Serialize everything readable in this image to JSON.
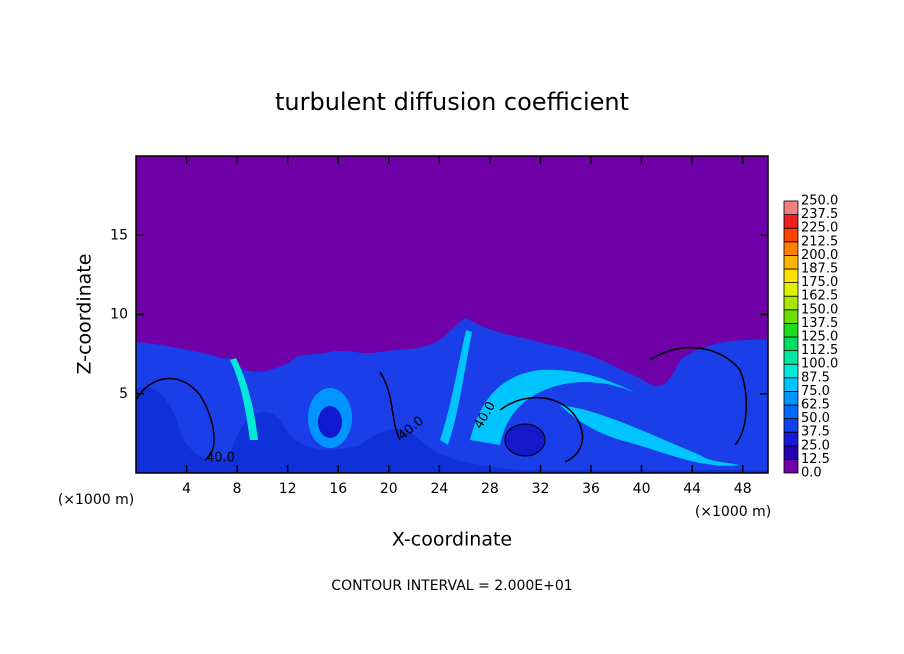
{
  "chart_data": {
    "type": "contour",
    "title": "turbulent diffusion coefficient",
    "x_label": "X-coordinate",
    "y_label": "Z-coordinate",
    "x_unit": "(×1000 m)",
    "y_unit": "(×1000 m)",
    "xlim": [
      0,
      50
    ],
    "ylim": [
      0,
      20
    ],
    "xticks": [
      4,
      8,
      12,
      16,
      20,
      24,
      28,
      32,
      36,
      40,
      44,
      48
    ],
    "yticks": [
      5,
      10,
      15
    ],
    "contour_label": "40.0",
    "footnote": "CONTOUR INTERVAL = 2.000E+01",
    "colorbar": {
      "levels": [
        {
          "value": 0,
          "label": "0.0"
        },
        {
          "value": 12.5,
          "label": "12.5"
        },
        {
          "value": 25,
          "label": "25.0"
        },
        {
          "value": 37.5,
          "label": "37.5"
        },
        {
          "value": 50,
          "label": "50.0"
        },
        {
          "value": 62.5,
          "label": "62.5"
        },
        {
          "value": 75,
          "label": "75.0"
        },
        {
          "value": 87.5,
          "label": "87.5"
        },
        {
          "value": 100,
          "label": "100.0"
        },
        {
          "value": 112.5,
          "label": "112.5"
        },
        {
          "value": 125,
          "label": "125.0"
        },
        {
          "value": 137.5,
          "label": "137.5"
        },
        {
          "value": 150,
          "label": "150.0"
        },
        {
          "value": 162.5,
          "label": "162.5"
        },
        {
          "value": 175,
          "label": "175.0"
        },
        {
          "value": 187.5,
          "label": "187.5"
        },
        {
          "value": 200,
          "label": "200.0"
        },
        {
          "value": 212.5,
          "label": "212.5"
        },
        {
          "value": 225,
          "label": "225.0"
        },
        {
          "value": 237.5,
          "label": "237.5"
        },
        {
          "value": 250,
          "label": "250.0"
        }
      ],
      "colors": [
        "#7000a8",
        "#2800b4",
        "#1818d8",
        "#1040f0",
        "#0068ff",
        "#0094ff",
        "#00c4ff",
        "#00e8d8",
        "#00e8a0",
        "#00e060",
        "#20dc20",
        "#68e000",
        "#a8e800",
        "#e0f000",
        "#ffe000",
        "#ffb400",
        "#ff8000",
        "#ff4400",
        "#f02020",
        "#f08080"
      ]
    }
  }
}
